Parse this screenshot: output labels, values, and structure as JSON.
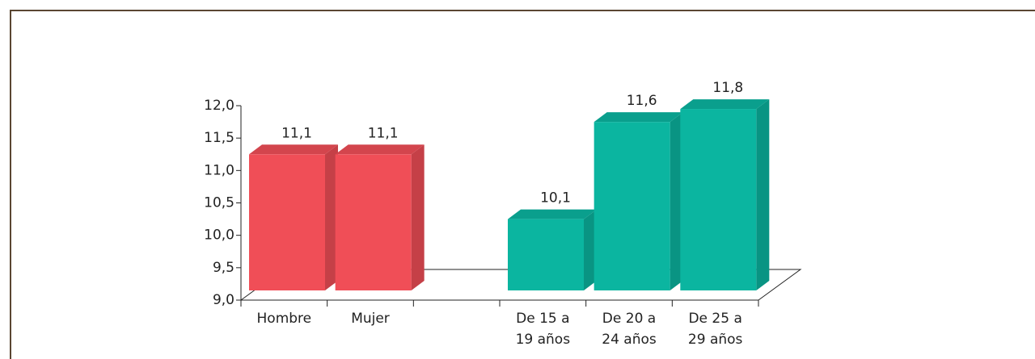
{
  "chart_data": {
    "type": "bar3d",
    "categories": [
      "Hombre",
      "Mujer",
      null,
      "De 15 a 19 años",
      "De 20 a 24 años",
      "De 25 a 29 años"
    ],
    "values": [
      11.1,
      11.1,
      null,
      10.1,
      11.6,
      11.8
    ],
    "value_labels": [
      "11,1",
      "11,1",
      null,
      "10,1",
      "11,6",
      "11,8"
    ],
    "colors": [
      "#f04e57",
      "#f04e57",
      null,
      "#0bb5a0",
      "#0bb5a0",
      "#0bb5a0"
    ],
    "ylim": [
      9,
      12
    ],
    "yticks": [
      {
        "value": 9,
        "label": "9,0"
      },
      {
        "value": 9.5,
        "label": "9,5"
      },
      {
        "value": 10,
        "label": "10,0"
      },
      {
        "value": 10.5,
        "label": "10,5"
      },
      {
        "value": 11,
        "label": "11,0"
      },
      {
        "value": 11.5,
        "label": "11,5"
      },
      {
        "value": 12,
        "label": "12,0"
      }
    ]
  }
}
